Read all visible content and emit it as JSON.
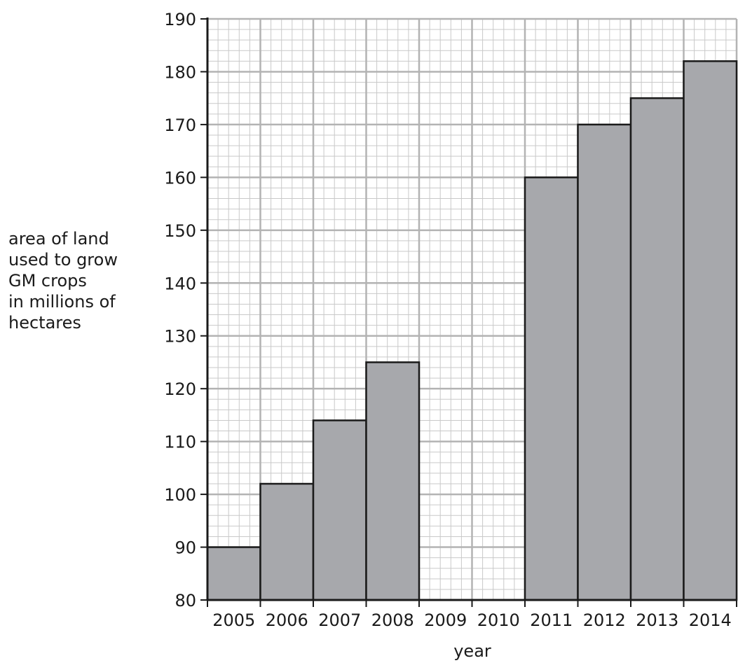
{
  "chart_data": {
    "type": "bar",
    "categories": [
      "2005",
      "2006",
      "2007",
      "2008",
      "2009",
      "2010",
      "2011",
      "2012",
      "2013",
      "2014"
    ],
    "values": [
      90,
      102,
      114,
      125,
      null,
      null,
      160,
      170,
      175,
      182
    ],
    "xlabel": "year",
    "ylabel_lines": [
      "area of land",
      "used to grow",
      "GM crops",
      "in millions of",
      "hectares"
    ],
    "ylim": [
      80,
      190
    ],
    "yticks": [
      80,
      90,
      100,
      110,
      120,
      130,
      140,
      150,
      160,
      170,
      180,
      190
    ],
    "grid": true,
    "colors": {
      "bar": "#a7a8ac",
      "grid_minor": "#c9c9c9",
      "grid_major": "#b3b3b3",
      "axis": "#1a1a1a"
    }
  }
}
